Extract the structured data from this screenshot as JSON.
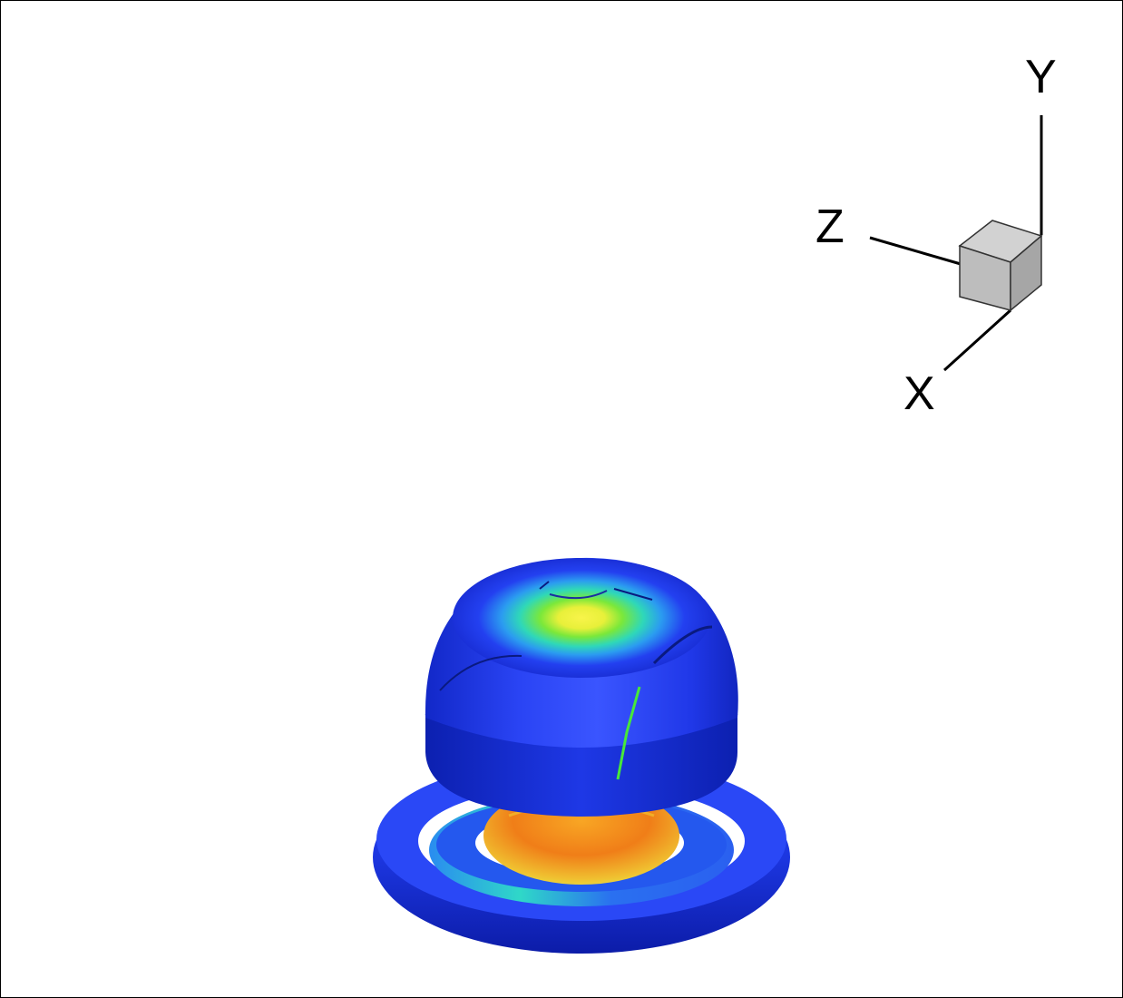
{
  "orientation_axes": {
    "x_label": "X",
    "y_label": "Y",
    "z_label": "Z",
    "cube_color": "#c4c4c4"
  },
  "palette": {
    "outer_blue": "#1f3ff0",
    "dark_blue": "#0a1ea8",
    "cyan": "#2bd0f0",
    "green": "#47e83a",
    "yellow": "#f4f23a",
    "orange": "#f38a1a"
  }
}
